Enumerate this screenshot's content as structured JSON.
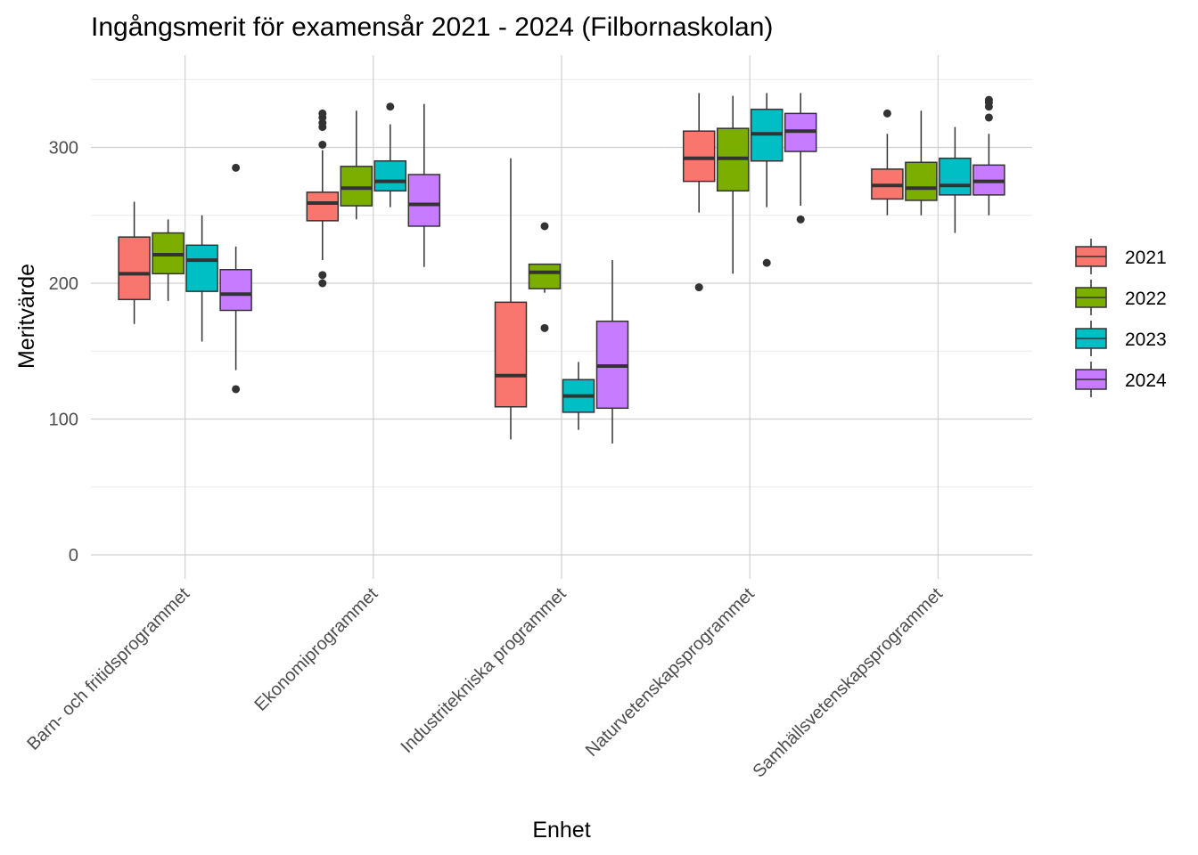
{
  "chart_data": {
    "type": "boxplot",
    "title": "Ingångsmerit för examensår 2021 - 2024 (Filbornaskolan)",
    "xlabel": "Enhet",
    "ylabel": "Meritvärde",
    "ylim": [
      -18,
      355
    ],
    "y_ticks": [
      0,
      100,
      200,
      300
    ],
    "grid": true,
    "legend_position": "right",
    "categories": [
      "Barn- och fritidsprogrammet",
      "Ekonomiprogrammet",
      "Industritekniska programmet",
      "Naturvetenskapsprogrammet",
      "Samhällsvetenskapsprogrammet"
    ],
    "series": [
      {
        "name": "2021",
        "color": "#F8766D",
        "boxes": [
          {
            "low": 170,
            "q1": 188,
            "median": 207,
            "q3": 234,
            "high": 260,
            "outliers": []
          },
          {
            "low": 217,
            "q1": 246,
            "median": 259,
            "q3": 267,
            "high": 298,
            "outliers": [
              200,
              206,
              302,
              315,
              318,
              322,
              325
            ]
          },
          {
            "low": 85,
            "q1": 109,
            "median": 132,
            "q3": 186,
            "high": 292,
            "outliers": []
          },
          {
            "low": 252,
            "q1": 275,
            "median": 292,
            "q3": 312,
            "high": 340,
            "outliers": [
              197
            ]
          },
          {
            "low": 250,
            "q1": 262,
            "median": 272,
            "q3": 284,
            "high": 310,
            "outliers": [
              325
            ]
          }
        ]
      },
      {
        "name": "2022",
        "color": "#7CAE00",
        "boxes": [
          {
            "low": 187,
            "q1": 207,
            "median": 221,
            "q3": 237,
            "high": 247,
            "outliers": []
          },
          {
            "low": 247,
            "q1": 257,
            "median": 270,
            "q3": 286,
            "high": 327,
            "outliers": []
          },
          {
            "low": 193,
            "q1": 196,
            "median": 208,
            "q3": 214,
            "high": 214,
            "outliers": [
              167,
              242
            ]
          },
          {
            "low": 207,
            "q1": 268,
            "median": 292,
            "q3": 314,
            "high": 338,
            "outliers": []
          },
          {
            "low": 250,
            "q1": 261,
            "median": 270,
            "q3": 289,
            "high": 327,
            "outliers": []
          }
        ]
      },
      {
        "name": "2023",
        "color": "#00BFC4",
        "boxes": [
          {
            "low": 157,
            "q1": 194,
            "median": 217,
            "q3": 228,
            "high": 250,
            "outliers": []
          },
          {
            "low": 256,
            "q1": 268,
            "median": 275,
            "q3": 290,
            "high": 317,
            "outliers": [
              330
            ]
          },
          {
            "low": 92,
            "q1": 105,
            "median": 117,
            "q3": 129,
            "high": 142,
            "outliers": []
          },
          {
            "low": 256,
            "q1": 290,
            "median": 310,
            "q3": 328,
            "high": 340,
            "outliers": [
              215
            ]
          },
          {
            "low": 237,
            "q1": 265,
            "median": 272,
            "q3": 292,
            "high": 315,
            "outliers": []
          }
        ]
      },
      {
        "name": "2024",
        "color": "#C77CFF",
        "boxes": [
          {
            "low": 136,
            "q1": 180,
            "median": 192,
            "q3": 210,
            "high": 227,
            "outliers": [
              122,
              285
            ]
          },
          {
            "low": 212,
            "q1": 242,
            "median": 258,
            "q3": 280,
            "high": 332,
            "outliers": []
          },
          {
            "low": 82,
            "q1": 108,
            "median": 139,
            "q3": 172,
            "high": 217,
            "outliers": []
          },
          {
            "low": 257,
            "q1": 297,
            "median": 312,
            "q3": 325,
            "high": 340,
            "outliers": [
              247
            ]
          },
          {
            "low": 250,
            "q1": 265,
            "median": 275,
            "q3": 287,
            "high": 310,
            "outliers": [
              322,
              330,
              333,
              335
            ]
          }
        ]
      }
    ]
  }
}
